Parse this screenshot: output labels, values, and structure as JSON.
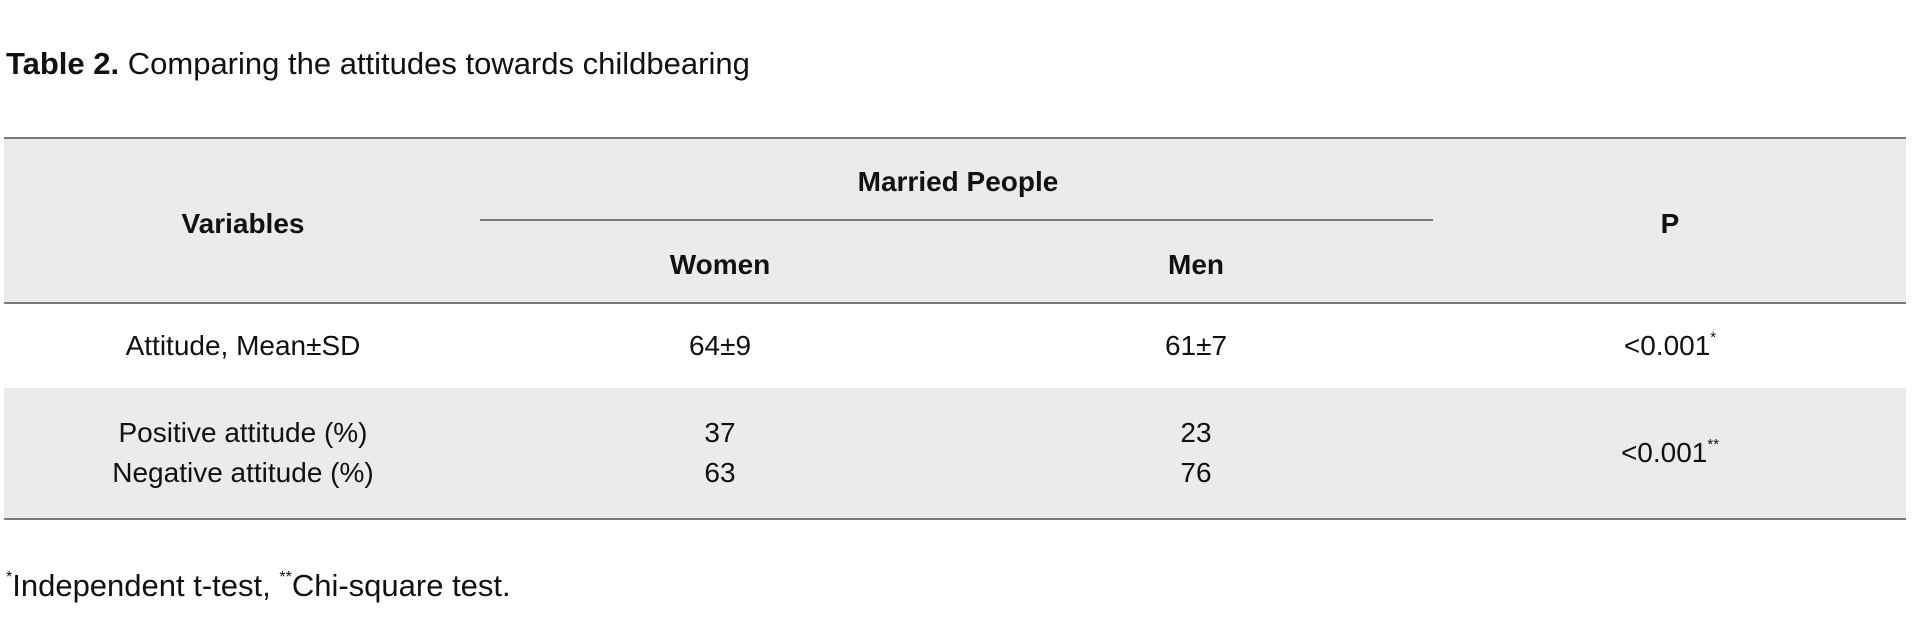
{
  "caption": {
    "label": "Table 2.",
    "text": " Comparing the attitudes towards childbearing"
  },
  "table": {
    "header": {
      "variables": "Variables",
      "group": "Married People",
      "women": "Women",
      "men": "Men",
      "p": "P"
    },
    "rows": [
      {
        "variable": "Attitude, Mean±SD",
        "women": "64±9",
        "men": "61±7",
        "p": "<0.001",
        "p_mark": "*"
      },
      {
        "variable_1": "Positive attitude (%)",
        "variable_2": "Negative attitude (%)",
        "women_1": "37",
        "women_2": "63",
        "men_1": "23",
        "men_2": "76",
        "p": "<0.001",
        "p_mark": "**"
      }
    ],
    "colors": {
      "band": "#ebebed",
      "rule": "#7a7a7a"
    }
  },
  "footnote": {
    "mark_1": "*",
    "text_1": "Independent t-test, ",
    "mark_2": "**",
    "text_2": "Chi-square test."
  }
}
